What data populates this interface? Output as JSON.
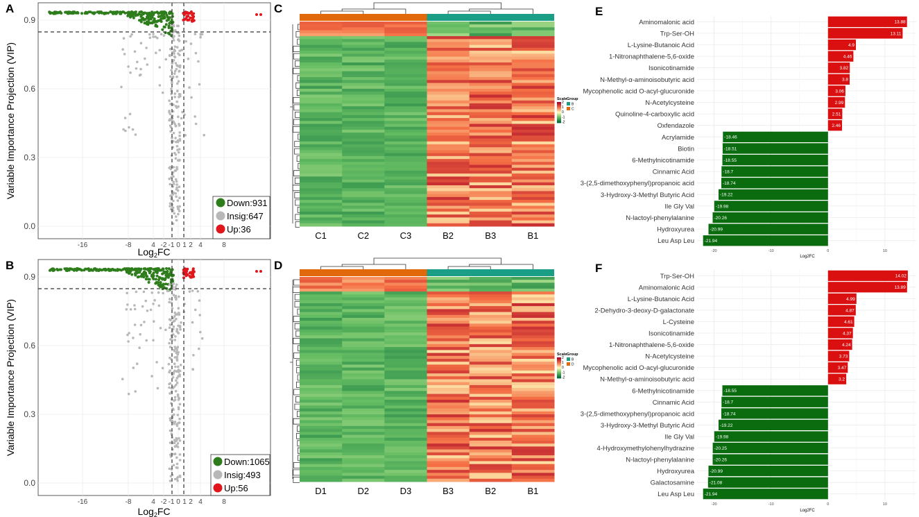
{
  "colors": {
    "down": "#2e7d1c",
    "insig": "#b8b8b8",
    "up": "#e0161d",
    "green_bar": "#0a6b0f",
    "red_bar": "#d90f10",
    "grid": "#ebebeb",
    "group_b": "#1a9e86",
    "group_cd": "#e2690b"
  },
  "chart_data": [
    {
      "panel": "A",
      "type": "scatter",
      "xlabel_main": "Log",
      "xlabel_sub": "2",
      "xlabel_end": "FC",
      "ylabel": "Variable Importance Projection (VIP)",
      "x_ticks": [
        "-16",
        "-8",
        "4",
        "-2",
        "-1",
        "0",
        "1",
        "2",
        "4",
        "8"
      ],
      "y_ticks": [
        "0.0",
        "0.3",
        "0.6",
        "0.9"
      ],
      "legend": [
        {
          "key": "down",
          "label": "Down:931"
        },
        {
          "key": "insig",
          "label": "Insig:647"
        },
        {
          "key": "up",
          "label": "Up:36"
        }
      ]
    },
    {
      "panel": "B",
      "type": "scatter",
      "xlabel_main": "Log",
      "xlabel_sub": "2",
      "xlabel_end": "FC",
      "ylabel": "Variable Importance Projection (VIP)",
      "x_ticks": [
        "-16",
        "-8",
        "4",
        "-2",
        "-1",
        "0",
        "1",
        "2",
        "4",
        "8"
      ],
      "y_ticks": [
        "0.0",
        "0.3",
        "0.6",
        "0.9"
      ],
      "legend": [
        {
          "key": "down",
          "label": "Down:1065"
        },
        {
          "key": "insig",
          "label": "Insig:493"
        },
        {
          "key": "up",
          "label": "Up:56"
        }
      ]
    },
    {
      "panel": "C",
      "type": "heatmap",
      "columns": [
        "C1",
        "C2",
        "C3",
        "B2",
        "B3",
        "B1"
      ],
      "legend_scale_title": "Scale",
      "legend_group_title": "Group",
      "scale_labels": [
        "2",
        "1",
        "0",
        "-1",
        "-2"
      ],
      "groups": [
        {
          "label": "B",
          "key": "group_b"
        },
        {
          "label": "C",
          "key": "group_cd"
        }
      ]
    },
    {
      "panel": "D",
      "type": "heatmap",
      "columns": [
        "D1",
        "D2",
        "D3",
        "B3",
        "B2",
        "B1"
      ],
      "legend_scale_title": "Scale",
      "legend_group_title": "Group",
      "scale_labels": [
        "2",
        "1",
        "0",
        "-1",
        "-2"
      ],
      "groups": [
        {
          "label": "B",
          "key": "group_b"
        },
        {
          "label": "D",
          "key": "group_cd"
        }
      ]
    },
    {
      "panel": "E",
      "type": "bar",
      "orientation": "horizontal",
      "xlabel": "Log2FC",
      "x_ticks": [
        -20,
        -10,
        0,
        10
      ],
      "xlim": [
        -23,
        15.5
      ],
      "categories": [
        "Aminomalonic acid",
        "Trp-Ser-OH",
        "L-Lysine-Butanoic Acid",
        "1-Nitronaphthalene-5,6-oxide",
        "Isonicotinamide",
        "N-Methyl-α-aminoisobutyric acid",
        "Mycophenolic acid O-acyl-glucuronide",
        "N-Acetylcysteine",
        "Quinoline-4-carboxylic acid",
        "Oxfendazole",
        "Acrylamide",
        "Biotin",
        "6-Methylnicotinamide",
        "Cinnamic Acid",
        "3-(2,5-dimethoxyphenyl)propanoic acid",
        "3-Hydroxy-3-Methyl  Butyric Acid",
        "Ile Gly Val",
        "N-lactoyl-phenylalanine",
        "Hydroxyurea",
        "Leu Asp Leu"
      ],
      "values": [
        13.88,
        13.11,
        4.9,
        4.46,
        3.82,
        3.8,
        3.06,
        2.99,
        2.51,
        2.46,
        -18.46,
        -18.51,
        -18.55,
        -18.7,
        -18.74,
        -19.22,
        -19.98,
        -20.26,
        -20.99,
        -21.94
      ]
    },
    {
      "panel": "F",
      "type": "bar",
      "orientation": "horizontal",
      "xlabel": "Log2FC",
      "x_ticks": [
        -20,
        -10,
        0,
        10
      ],
      "xlim": [
        -23,
        15.5
      ],
      "categories": [
        "Trp-Ser-OH",
        "Aminomalonic Acid",
        "L-Lysine-Butanoic Acid",
        "2-Dehydro-3-deoxy-D-galactonate",
        "L-Cysteine",
        "Isonicotinamide",
        "1-Nitronaphthalene-5,6-oxide",
        "N-Acetylcysteine",
        "Mycophenolic acid O-acyl-glucuronide",
        "N-Methyl-α-aminoisobutyric acid",
        "6-Methylnicotinamide",
        "Cinnamic Acid",
        "3-(2,5-dimethoxyphenyl)propanoic acid",
        "3-Hydroxy-3-Methyl  Butyric Acid",
        "Ile Gly Val",
        "4-Hydroxymethylohenylhydrazine",
        "N-lactoyl-phenylalanine",
        "Hydroxyurea",
        "Galactosamine",
        "Leu Asp Leu"
      ],
      "values": [
        14.02,
        13.89,
        4.99,
        4.87,
        4.61,
        4.37,
        4.24,
        3.73,
        3.47,
        3.2,
        -18.55,
        -18.7,
        -18.74,
        -19.22,
        -19.98,
        -20.25,
        -20.26,
        -20.99,
        -21.08,
        -21.94
      ]
    }
  ]
}
